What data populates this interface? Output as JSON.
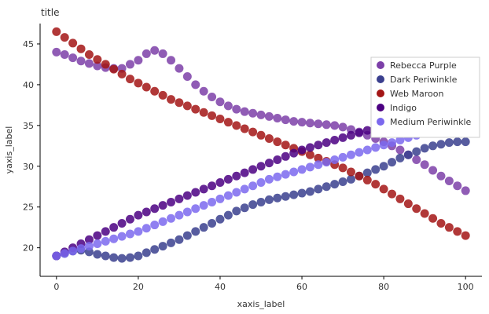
{
  "chart_data": {
    "type": "scatter",
    "title": "title",
    "xlabel": "xaxis_label",
    "ylabel": "yaxis_label",
    "xlim": [
      -4,
      104
    ],
    "ylim": [
      16.5,
      47.5
    ],
    "xticks": [
      0,
      20,
      40,
      60,
      80,
      100
    ],
    "yticks": [
      20,
      25,
      30,
      35,
      40,
      45
    ],
    "grid": false,
    "legend_position": "right",
    "series": [
      {
        "name": "Rebecca Purple",
        "color": "#7C3FA8",
        "x": [
          0,
          2,
          4,
          6,
          8,
          10,
          12,
          14,
          16,
          18,
          20,
          22,
          24,
          26,
          28,
          30,
          32,
          34,
          36,
          38,
          40,
          42,
          44,
          46,
          48,
          50,
          52,
          54,
          56,
          58,
          60,
          62,
          64,
          66,
          68,
          70,
          72,
          74,
          76,
          78,
          80,
          82,
          84,
          86,
          88,
          90,
          92,
          94,
          96,
          98,
          100
        ],
        "y": [
          44.0,
          43.7,
          43.3,
          42.9,
          42.6,
          42.3,
          42.1,
          42.0,
          42.0,
          42.5,
          43.0,
          43.8,
          44.2,
          43.8,
          43.0,
          42.0,
          41.0,
          40.0,
          39.2,
          38.5,
          37.9,
          37.4,
          37.0,
          36.7,
          36.5,
          36.3,
          36.1,
          35.9,
          35.7,
          35.5,
          35.4,
          35.3,
          35.2,
          35.1,
          35.0,
          34.8,
          34.5,
          34.2,
          33.8,
          33.4,
          33.0,
          32.5,
          32.0,
          31.4,
          30.8,
          30.2,
          29.5,
          28.8,
          28.2,
          27.6,
          27.0
        ]
      },
      {
        "name": "Dark Periwinkle",
        "color": "#3A3F8E",
        "x": [
          0,
          2,
          4,
          6,
          8,
          10,
          12,
          14,
          16,
          18,
          20,
          22,
          24,
          26,
          28,
          30,
          32,
          34,
          36,
          38,
          40,
          42,
          44,
          46,
          48,
          50,
          52,
          54,
          56,
          58,
          60,
          62,
          64,
          66,
          68,
          70,
          72,
          74,
          76,
          78,
          80,
          82,
          84,
          86,
          88,
          90,
          92,
          94,
          96,
          98,
          100
        ],
        "y": [
          19.0,
          19.3,
          19.6,
          19.7,
          19.5,
          19.2,
          19.0,
          18.8,
          18.7,
          18.8,
          19.0,
          19.4,
          19.8,
          20.2,
          20.6,
          21.0,
          21.5,
          22.0,
          22.5,
          23.0,
          23.5,
          24.0,
          24.5,
          24.9,
          25.3,
          25.6,
          25.9,
          26.1,
          26.3,
          26.5,
          26.7,
          26.9,
          27.2,
          27.5,
          27.8,
          28.1,
          28.4,
          28.8,
          29.2,
          29.6,
          30.0,
          30.5,
          31.0,
          31.4,
          31.8,
          32.2,
          32.5,
          32.7,
          32.9,
          33.0,
          33.0
        ]
      },
      {
        "name": "Web Maroon",
        "color": "#A31515",
        "x": [
          0,
          2,
          4,
          6,
          8,
          10,
          12,
          14,
          16,
          18,
          20,
          22,
          24,
          26,
          28,
          30,
          32,
          34,
          36,
          38,
          40,
          42,
          44,
          46,
          48,
          50,
          52,
          54,
          56,
          58,
          60,
          62,
          64,
          66,
          68,
          70,
          72,
          74,
          76,
          78,
          80,
          82,
          84,
          86,
          88,
          90,
          92,
          94,
          96,
          98,
          100
        ],
        "y": [
          46.5,
          45.8,
          45.1,
          44.4,
          43.7,
          43.1,
          42.5,
          41.9,
          41.3,
          40.7,
          40.2,
          39.7,
          39.2,
          38.7,
          38.2,
          37.8,
          37.4,
          37.0,
          36.6,
          36.2,
          35.8,
          35.4,
          35.0,
          34.6,
          34.2,
          33.8,
          33.4,
          33.0,
          32.6,
          32.2,
          31.8,
          31.4,
          31.0,
          30.6,
          30.2,
          29.8,
          29.3,
          28.8,
          28.3,
          27.8,
          27.2,
          26.6,
          26.0,
          25.4,
          24.8,
          24.2,
          23.6,
          23.0,
          22.5,
          22.0,
          21.5
        ]
      },
      {
        "name": "Indigo",
        "color": "#4B0082",
        "x": [
          0,
          2,
          4,
          6,
          8,
          10,
          12,
          14,
          16,
          18,
          20,
          22,
          24,
          26,
          28,
          30,
          32,
          34,
          36,
          38,
          40,
          42,
          44,
          46,
          48,
          50,
          52,
          54,
          56,
          58,
          60,
          62,
          64,
          66,
          68,
          70,
          72,
          74,
          76,
          78,
          80,
          82,
          84,
          86,
          88,
          90,
          92,
          94,
          96,
          98,
          100
        ],
        "y": [
          19.0,
          19.5,
          20.0,
          20.5,
          21.0,
          21.5,
          22.0,
          22.5,
          23.0,
          23.5,
          24.0,
          24.4,
          24.8,
          25.2,
          25.6,
          26.0,
          26.4,
          26.8,
          27.2,
          27.6,
          28.0,
          28.4,
          28.8,
          29.2,
          29.6,
          30.0,
          30.4,
          30.8,
          31.2,
          31.6,
          32.0,
          32.3,
          32.6,
          32.9,
          33.2,
          33.5,
          33.8,
          34.1,
          34.4,
          34.7,
          35.0,
          35.3,
          35.6,
          35.9,
          36.2,
          36.5,
          36.8,
          37.1,
          37.4,
          37.7,
          38.0
        ]
      },
      {
        "name": "Medium Periwinkle",
        "color": "#7B68EE",
        "x": [
          0,
          2,
          4,
          6,
          8,
          10,
          12,
          14,
          16,
          18,
          20,
          22,
          24,
          26,
          28,
          30,
          32,
          34,
          36,
          38,
          40,
          42,
          44,
          46,
          48,
          50,
          52,
          54,
          56,
          58,
          60,
          62,
          64,
          66,
          68,
          70,
          72,
          74,
          76,
          78,
          80,
          82,
          84,
          86,
          88,
          90,
          92,
          94,
          96,
          98,
          100
        ],
        "y": [
          19.0,
          19.3,
          19.6,
          19.9,
          20.2,
          20.5,
          20.8,
          21.1,
          21.4,
          21.7,
          22.0,
          22.4,
          22.8,
          23.2,
          23.6,
          24.0,
          24.4,
          24.8,
          25.2,
          25.6,
          26.0,
          26.4,
          26.8,
          27.2,
          27.6,
          28.0,
          28.4,
          28.7,
          29.0,
          29.3,
          29.6,
          29.9,
          30.2,
          30.5,
          30.8,
          31.1,
          31.4,
          31.7,
          32.0,
          32.3,
          32.6,
          32.9,
          33.2,
          33.5,
          33.8,
          34.1,
          34.4,
          34.7,
          35.0,
          35.3,
          35.6
        ]
      }
    ]
  }
}
